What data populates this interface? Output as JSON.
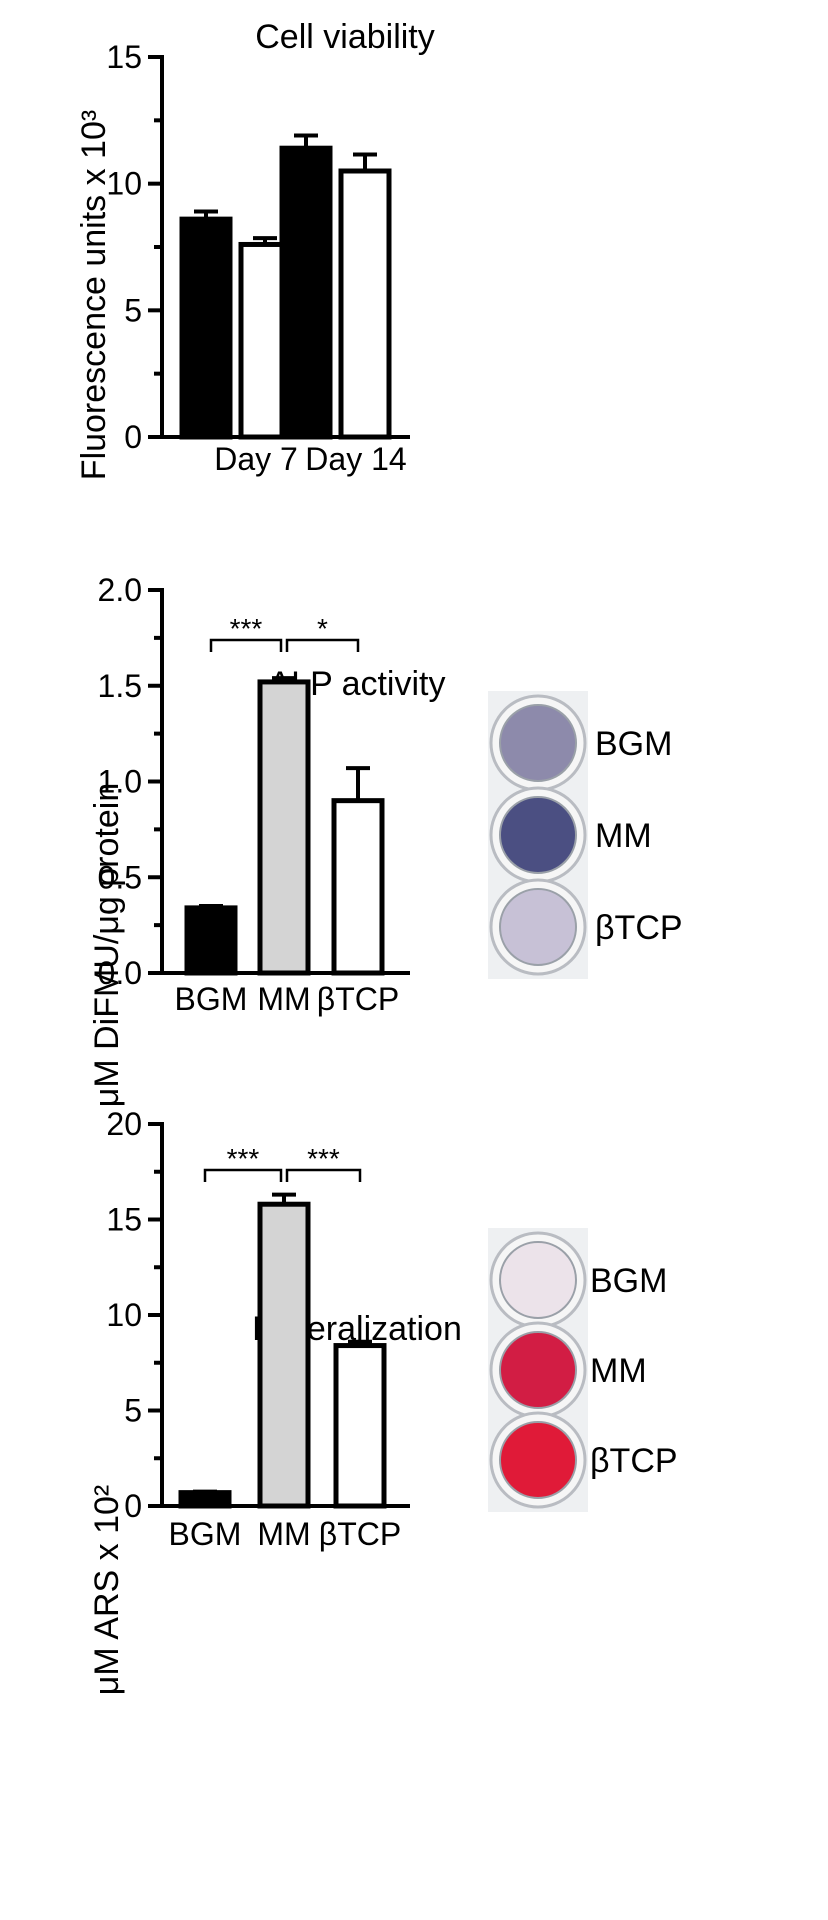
{
  "chart_data": [
    {
      "type": "bar",
      "title": "Cell viability",
      "ylabel": "Fluorescence units x 10³",
      "ylim": [
        0,
        15
      ],
      "yticks": [
        "0",
        "5",
        "10",
        "15"
      ],
      "categories": [
        "Day 7",
        "Day 14"
      ],
      "series": [
        {
          "color": "#000000",
          "values": [
            8.6,
            11.4
          ],
          "errors": [
            0.3,
            0.5
          ]
        },
        {
          "color": "#ffffff",
          "values": [
            7.6,
            10.5
          ],
          "errors": [
            0.25,
            0.65
          ]
        }
      ],
      "grid": false
    },
    {
      "type": "bar",
      "title": "ALP activity",
      "ylabel": "μM DiFMU/μg protein",
      "ylim": [
        0,
        2.0
      ],
      "yticks": [
        "0.0",
        "0.5",
        "1.0",
        "1.5",
        "2.0"
      ],
      "categories": [
        "BGM",
        "MM",
        "βTCP"
      ],
      "values": [
        0.34,
        1.52,
        0.9
      ],
      "errors": [
        0.01,
        0.02,
        0.17
      ],
      "colors": [
        "#000000",
        "#d4d4d4",
        "#ffffff"
      ],
      "significance": [
        {
          "from": 0,
          "to": 1,
          "label": "***"
        },
        {
          "from": 1,
          "to": 2,
          "label": "*"
        }
      ],
      "wells": {
        "labels": [
          "BGM",
          "MM",
          "βTCP"
        ],
        "colors": [
          "#8d8aab",
          "#4b4f82",
          "#c7c1d6"
        ]
      },
      "grid": false
    },
    {
      "type": "bar",
      "title": "Mineralization",
      "ylabel": "μM ARS  x 10²",
      "ylim": [
        0,
        20
      ],
      "yticks": [
        "0",
        "5",
        "10",
        "15",
        "20"
      ],
      "categories": [
        "BGM",
        "MM",
        "βTCP"
      ],
      "values": [
        0.7,
        15.8,
        8.4
      ],
      "errors": [
        0.05,
        0.5,
        0.2
      ],
      "colors": [
        "#000000",
        "#d4d4d4",
        "#ffffff"
      ],
      "significance": [
        {
          "from": 0,
          "to": 1,
          "label": "***"
        },
        {
          "from": 1,
          "to": 2,
          "label": "***"
        }
      ],
      "wells": {
        "labels": [
          "BGM",
          "MM",
          "βTCP"
        ],
        "colors": [
          "#ece3ea",
          "#d21d44",
          "#e01a38"
        ]
      },
      "grid": false
    }
  ]
}
